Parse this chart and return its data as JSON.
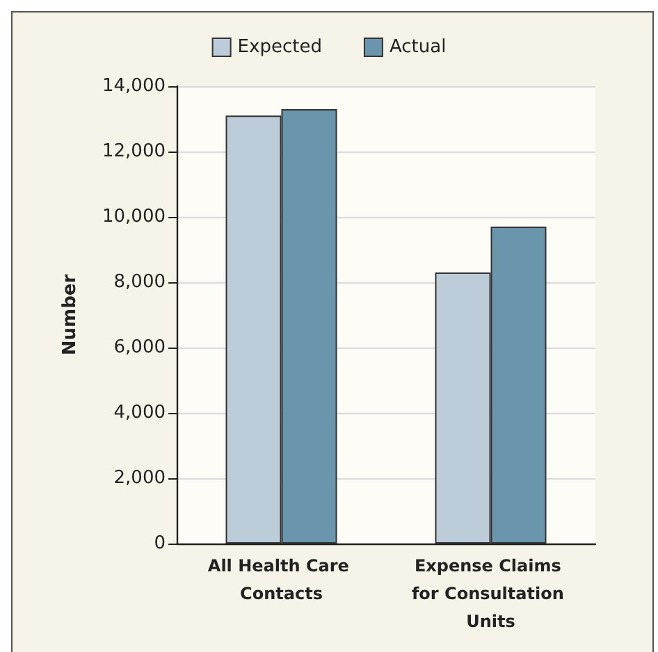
{
  "chart_data": {
    "type": "bar",
    "ylabel": "Number",
    "categories": [
      "All Health Care Contacts",
      "Expense Claims for Consultation Units"
    ],
    "series": [
      {
        "name": "Expected",
        "color": "#bccdd9",
        "values": [
          13100,
          8300
        ]
      },
      {
        "name": "Actual",
        "color": "#6996ad",
        "values": [
          13300,
          9700
        ]
      }
    ],
    "ylim": [
      0,
      14000
    ],
    "yticks": [
      0,
      {
        "value": 2000,
        "label": "2,000"
      },
      {
        "value": 4000,
        "label": "4,000"
      },
      {
        "value": 6000,
        "label": "6,000"
      },
      {
        "value": 8000,
        "label": "8,000"
      },
      {
        "value": 10000,
        "label": "10,000"
      },
      {
        "value": 12000,
        "label": "12,000"
      },
      {
        "value": 14000,
        "label": "14,000"
      }
    ],
    "grid": "y",
    "legend": "top"
  }
}
